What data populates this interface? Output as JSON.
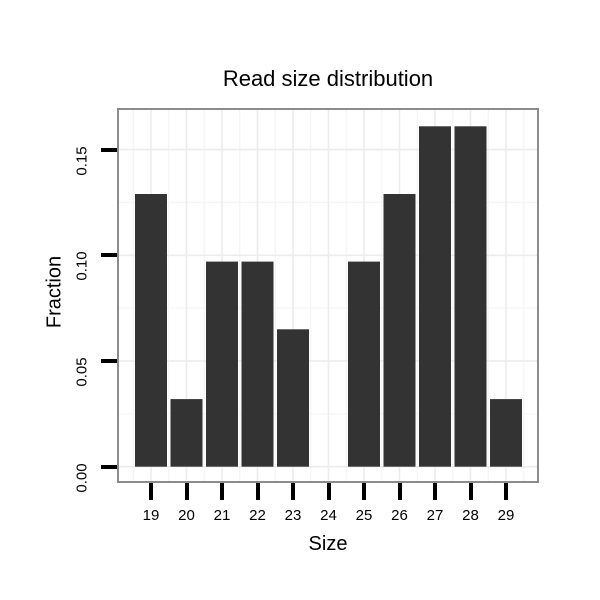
{
  "chart_data": {
    "type": "bar",
    "title": "Read size distribution",
    "xlabel": "Size",
    "ylabel": "Fraction",
    "categories": [
      19,
      20,
      21,
      22,
      23,
      24,
      25,
      26,
      27,
      28,
      29
    ],
    "values": [
      0.129,
      0.032,
      0.097,
      0.097,
      0.065,
      0,
      0.097,
      0.129,
      0.161,
      0.161,
      0.032
    ],
    "x_tick_labels": [
      "19",
      "20",
      "21",
      "22",
      "23",
      "24",
      "25",
      "26",
      "27",
      "28",
      "29"
    ],
    "y_tick_labels": [
      "0.00",
      "0.05",
      "0.10",
      "0.15"
    ],
    "y_tick_values": [
      0,
      0.05,
      0.1,
      0.15
    ],
    "xlim": [
      18.1,
      29.9
    ],
    "ylim": [
      -0.007,
      0.17
    ],
    "grid": "on",
    "legend": "none",
    "colors": {
      "bar_fill": "#333333",
      "panel_border": "#8c8c8c",
      "grid_major": "#ececec",
      "grid_minor": "#f5f5f5",
      "tick": "#000000",
      "text": "#000000",
      "background": "#ffffff"
    }
  }
}
